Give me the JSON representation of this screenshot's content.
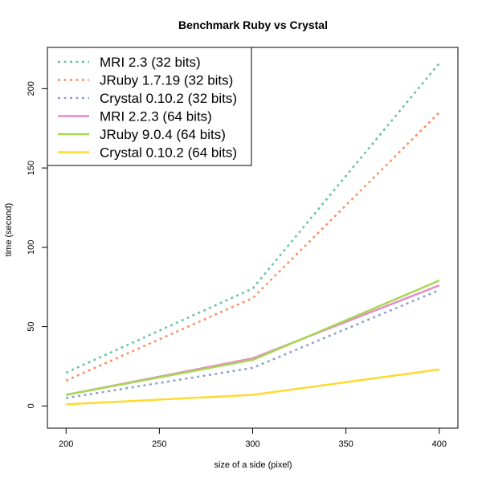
{
  "chart_data": {
    "type": "line",
    "title": "Benchmark Ruby vs Crystal",
    "xlabel": "size of a side (pixel)",
    "ylabel": "time (second)",
    "x": [
      200,
      300,
      400
    ],
    "xlim": [
      190,
      410
    ],
    "ylim": [
      -14,
      226
    ],
    "xticks": [
      200,
      250,
      300,
      350,
      400
    ],
    "yticks": [
      0,
      50,
      100,
      150,
      200
    ],
    "legend_position": "top-left",
    "grid": false,
    "series": [
      {
        "name": "MRI 2.3 (32 bits)",
        "values": [
          21,
          74,
          216
        ],
        "color": "#66c2a5",
        "style": "dotted"
      },
      {
        "name": "JRuby 1.7.19 (32 bits)",
        "values": [
          16,
          68,
          185
        ],
        "color": "#fc8d62",
        "style": "dotted"
      },
      {
        "name": "Crystal 0.10.2 (32 bits)",
        "values": [
          5,
          24,
          73
        ],
        "color": "#8da0cb",
        "style": "dotted"
      },
      {
        "name": "MRI 2.2.3 (64 bits)",
        "values": [
          7,
          30,
          76
        ],
        "color": "#e78ac3",
        "style": "solid"
      },
      {
        "name": "JRuby 9.0.4 (64 bits)",
        "values": [
          7,
          29,
          79
        ],
        "color": "#a6d854",
        "style": "solid"
      },
      {
        "name": "Crystal 0.10.2 (64 bits)",
        "values": [
          1,
          7,
          23
        ],
        "color": "#ffd92f",
        "style": "solid"
      }
    ]
  }
}
